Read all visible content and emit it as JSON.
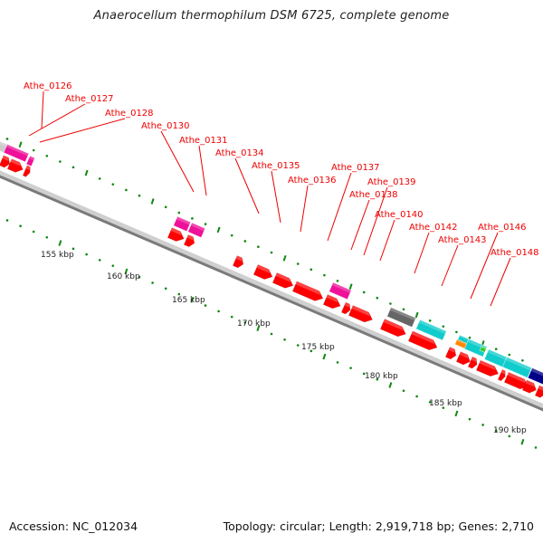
{
  "header": {
    "title": "Anaerocellum thermophilum DSM 6725, complete genome"
  },
  "footer": {
    "accession": "Accession: NC_012034",
    "summary": "Topology: circular; Length: 2,919,718 bp; Genes: 2,710"
  },
  "colors": {
    "cds": "#ff0000",
    "pink": "#ee1199",
    "cyan": "#11cccc",
    "gray_feature": "#666666",
    "light_gray_feature": "#cccccc",
    "orange": "#ff8800",
    "green_small": "#33cc33",
    "navy": "#000088",
    "tick": "#118811",
    "backbone": "#888888",
    "label": "#ee0000"
  },
  "scale": {
    "unit": "kbp",
    "labels": [
      "155 kbp",
      "160 kbp",
      "165 kbp",
      "170 kbp",
      "175 kbp",
      "180 kbp",
      "185 kbp",
      "190 kbp"
    ]
  },
  "gene_labels": [
    "Athe_0126",
    "Athe_0127",
    "Athe_0128",
    "Athe_0130",
    "Athe_0131",
    "Athe_0134",
    "Athe_0135",
    "Athe_0136",
    "Athe_0137",
    "Athe_0138",
    "Athe_0139",
    "Athe_0140",
    "Athe_0142",
    "Athe_0143",
    "Athe_0146",
    "Athe_0148"
  ]
}
